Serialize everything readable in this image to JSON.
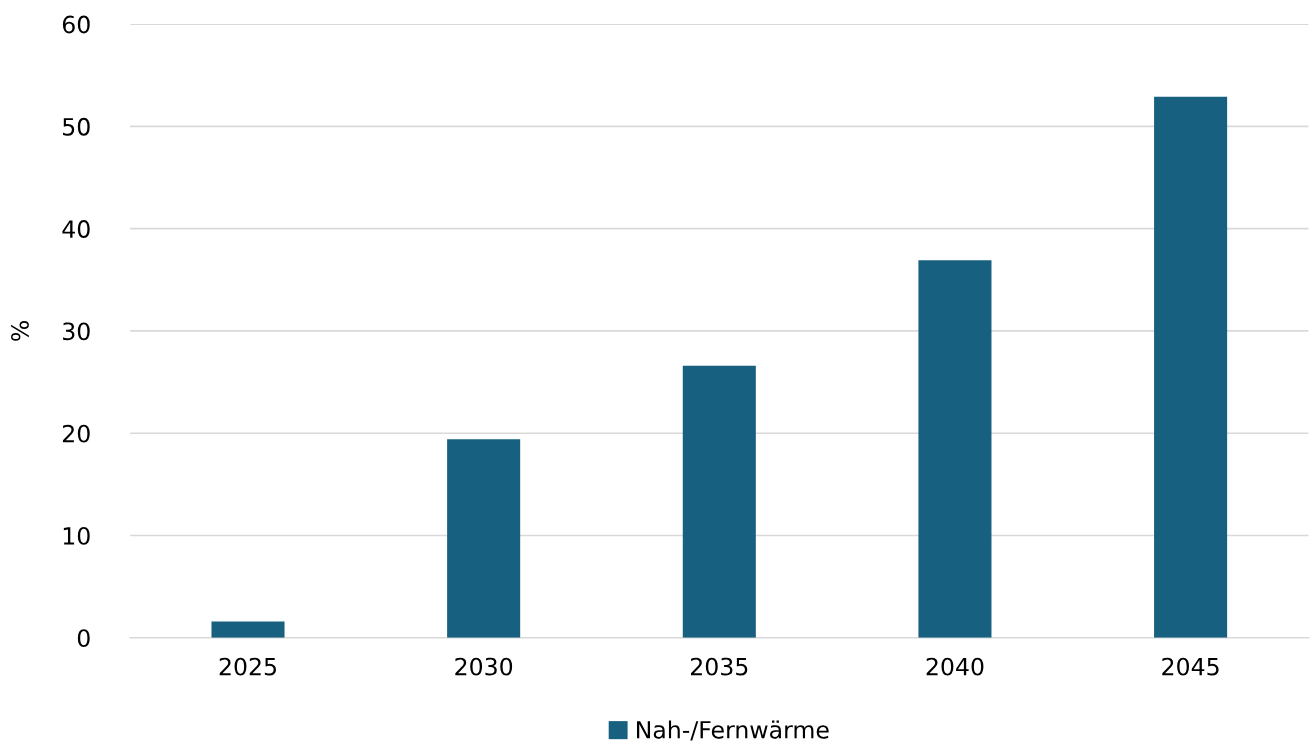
{
  "chart_data": {
    "type": "bar",
    "ylabel": "%",
    "categories": [
      "2025",
      "2030",
      "2035",
      "2040",
      "2045"
    ],
    "series": [
      {
        "name": "Nah-/Fernwärme",
        "color": "#17607f",
        "values": [
          1.6,
          19.4,
          26.6,
          36.9,
          52.9
        ]
      }
    ],
    "ylim": [
      0,
      60
    ],
    "yticks": [
      0,
      10,
      20,
      30,
      40,
      50,
      60
    ],
    "grid": "y",
    "legend": "bottom"
  }
}
